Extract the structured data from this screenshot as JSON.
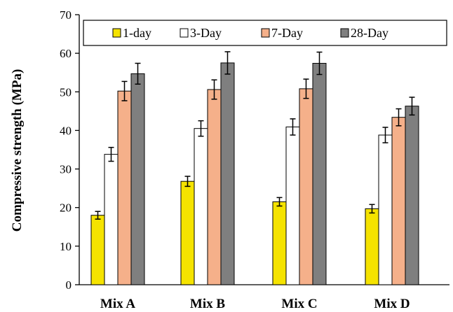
{
  "chart_data": {
    "type": "bar",
    "title": "",
    "xlabel": "",
    "ylabel": "Compressive strength (MPa)",
    "ylim": [
      0,
      70
    ],
    "yticks": [
      0,
      10,
      20,
      30,
      40,
      50,
      60,
      70
    ],
    "grid": false,
    "legend_position": "top",
    "categories": [
      "Mix A",
      "Mix B",
      "Mix C",
      "Mix D"
    ],
    "series": [
      {
        "name": "1-day",
        "color": "#f5e300",
        "values": [
          18.0,
          26.8,
          21.5,
          19.7
        ],
        "errors": [
          1.0,
          1.3,
          1.1,
          1.1
        ]
      },
      {
        "name": "3-Day",
        "color": "#ffffff",
        "values": [
          33.8,
          40.5,
          40.9,
          38.8
        ],
        "errors": [
          1.8,
          2.0,
          2.1,
          2.0
        ]
      },
      {
        "name": "7-Day",
        "color": "#f5b08a",
        "values": [
          50.2,
          50.6,
          50.8,
          43.4
        ],
        "errors": [
          2.5,
          2.5,
          2.5,
          2.2
        ]
      },
      {
        "name": "28-Day",
        "color": "#7f7f7f",
        "values": [
          54.7,
          57.5,
          57.4,
          46.3
        ],
        "errors": [
          2.7,
          2.9,
          2.9,
          2.3
        ]
      }
    ]
  }
}
